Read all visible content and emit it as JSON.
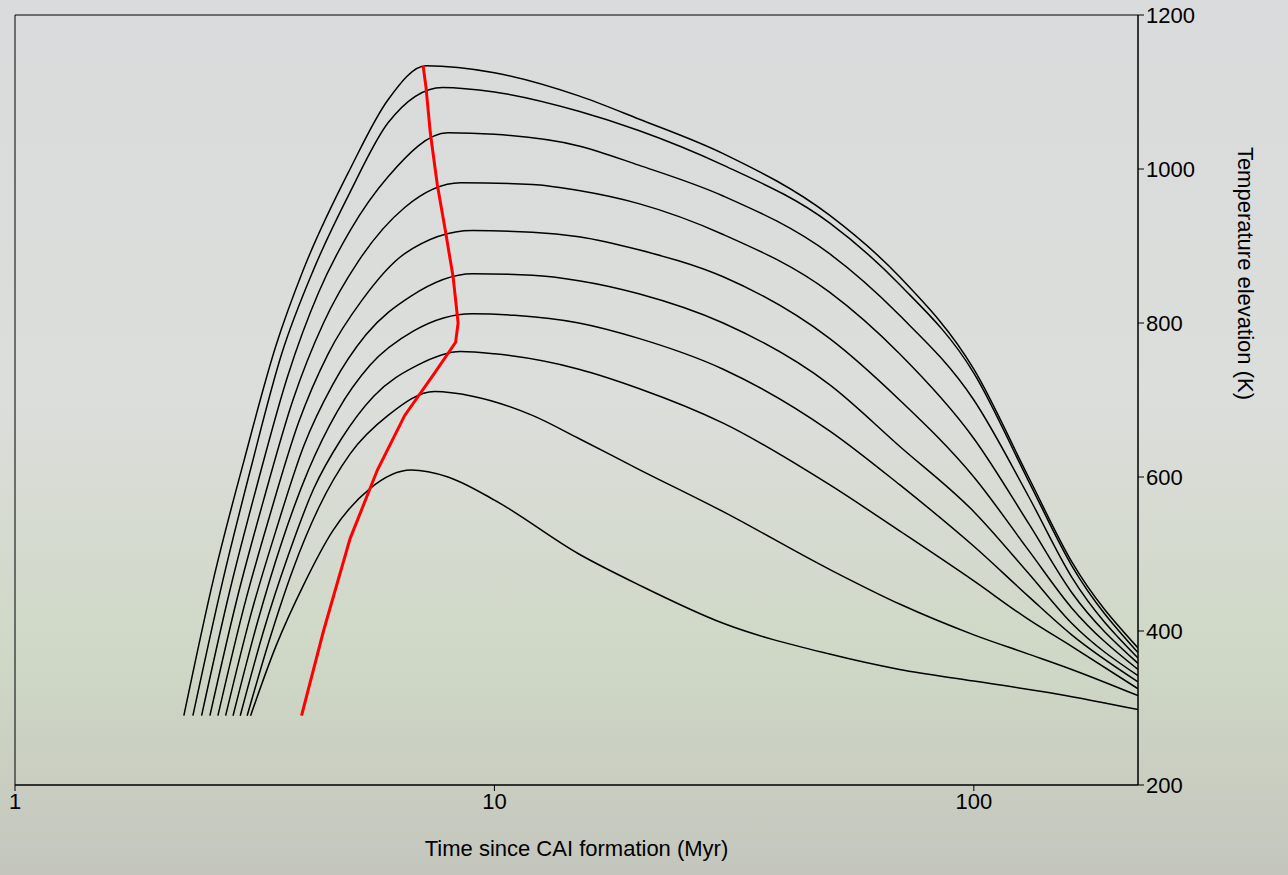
{
  "chart_data": {
    "type": "line",
    "x_label": "Time since CAI formation (Myr)",
    "y_label": "Temperature elevation (K)",
    "log": "x",
    "xlim": [
      1,
      220
    ],
    "ylim": [
      200,
      1200
    ],
    "xticks": [
      1,
      10,
      100
    ],
    "yticks": [
      200,
      400,
      600,
      800,
      1000,
      1200
    ],
    "grid": false,
    "series": [
      {
        "color": "#000000",
        "x": [
          2.25,
          2.6,
          3,
          3.5,
          4,
          5,
          6,
          7.2,
          10,
          15,
          20,
          30,
          50,
          70,
          100,
          130,
          160,
          220
        ],
        "values": [
          290,
          470,
          620,
          770,
          870,
          1000,
          1090,
          1134,
          1125,
          1095,
          1065,
          1020,
          940,
          860,
          740,
          600,
          490,
          378
        ]
      },
      {
        "color": "#000000",
        "x": [
          2.35,
          2.7,
          3.1,
          3.6,
          4.2,
          5,
          6,
          7.8,
          10,
          15,
          20,
          30,
          50,
          70,
          100,
          130,
          160,
          220
        ],
        "values": [
          290,
          460,
          610,
          760,
          870,
          970,
          1060,
          1106,
          1100,
          1075,
          1050,
          1005,
          930,
          850,
          735,
          595,
          485,
          372
        ]
      },
      {
        "color": "#000000",
        "x": [
          2.45,
          2.8,
          3.2,
          3.7,
          4.3,
          5,
          6,
          8,
          10,
          15,
          20,
          30,
          50,
          70,
          100,
          130,
          160,
          220
        ],
        "values": [
          290,
          450,
          590,
          730,
          840,
          920,
          990,
          1047,
          1045,
          1030,
          1005,
          965,
          890,
          810,
          700,
          575,
          470,
          365
        ]
      },
      {
        "color": "#000000",
        "x": [
          2.55,
          2.9,
          3.3,
          3.8,
          4.4,
          5.2,
          6.5,
          8.5,
          12,
          15,
          20,
          30,
          50,
          70,
          100,
          130,
          160,
          220
        ],
        "values": [
          290,
          440,
          570,
          700,
          800,
          880,
          950,
          982,
          980,
          972,
          955,
          915,
          840,
          760,
          650,
          540,
          450,
          358
        ]
      },
      {
        "color": "#000000",
        "x": [
          2.65,
          3,
          3.4,
          3.9,
          4.5,
          5.3,
          6.5,
          9,
          12,
          15,
          20,
          30,
          50,
          70,
          100,
          130,
          160,
          220
        ],
        "values": [
          290,
          430,
          550,
          670,
          760,
          830,
          890,
          920,
          918,
          912,
          895,
          860,
          780,
          700,
          600,
          505,
          430,
          350
        ]
      },
      {
        "color": "#000000",
        "x": [
          2.75,
          3.1,
          3.5,
          4,
          4.6,
          5.4,
          6.7,
          9,
          12,
          15,
          20,
          30,
          50,
          70,
          100,
          130,
          160,
          220
        ],
        "values": [
          290,
          420,
          530,
          640,
          720,
          785,
          835,
          864,
          862,
          855,
          838,
          800,
          720,
          640,
          555,
          475,
          410,
          342
        ]
      },
      {
        "color": "#000000",
        "x": [
          2.85,
          3.2,
          3.6,
          4.1,
          4.7,
          5.5,
          6.8,
          9,
          11,
          15,
          20,
          30,
          50,
          70,
          100,
          130,
          160,
          220
        ],
        "values": [
          290,
          410,
          515,
          610,
          685,
          745,
          790,
          812,
          810,
          800,
          780,
          740,
          660,
          590,
          510,
          445,
          395,
          334
        ]
      },
      {
        "color": "#000000",
        "x": [
          2.95,
          3.3,
          3.7,
          4.2,
          4.8,
          5.6,
          6.9,
          8.5,
          10,
          15,
          20,
          30,
          50,
          70,
          100,
          130,
          160,
          220
        ],
        "values": [
          290,
          400,
          495,
          585,
          650,
          705,
          745,
          763,
          760,
          740,
          715,
          670,
          590,
          530,
          465,
          415,
          380,
          325
        ]
      },
      {
        "color": "#000000",
        "x": [
          3.05,
          3.4,
          3.8,
          4.3,
          5,
          6,
          7.5,
          9,
          12,
          15,
          20,
          30,
          50,
          70,
          100,
          130,
          160,
          220
        ],
        "values": [
          290,
          390,
          480,
          560,
          630,
          680,
          711,
          705,
          680,
          650,
          610,
          555,
          480,
          435,
          395,
          370,
          350,
          316
        ]
      },
      {
        "color": "#000000",
        "x": [
          3.1,
          3.5,
          4,
          4.6,
          5.5,
          6.7,
          8,
          10,
          15,
          20,
          30,
          50,
          70,
          100,
          150,
          220
        ],
        "values": [
          290,
          380,
          460,
          530,
          585,
          609,
          600,
          570,
          500,
          460,
          410,
          370,
          350,
          335,
          318,
          298
        ]
      },
      {
        "color": "#ff0000",
        "x": [
          3.96,
          4.4,
          5,
          5.7,
          6.5,
          7.5,
          8.3,
          8.4,
          8.2,
          7.9,
          7.6,
          7.35,
          7.2,
          7.1
        ],
        "values": [
          290,
          400,
          520,
          609,
          680,
          735,
          775,
          800,
          860,
          920,
          980,
          1047,
          1106,
          1134
        ]
      }
    ]
  }
}
